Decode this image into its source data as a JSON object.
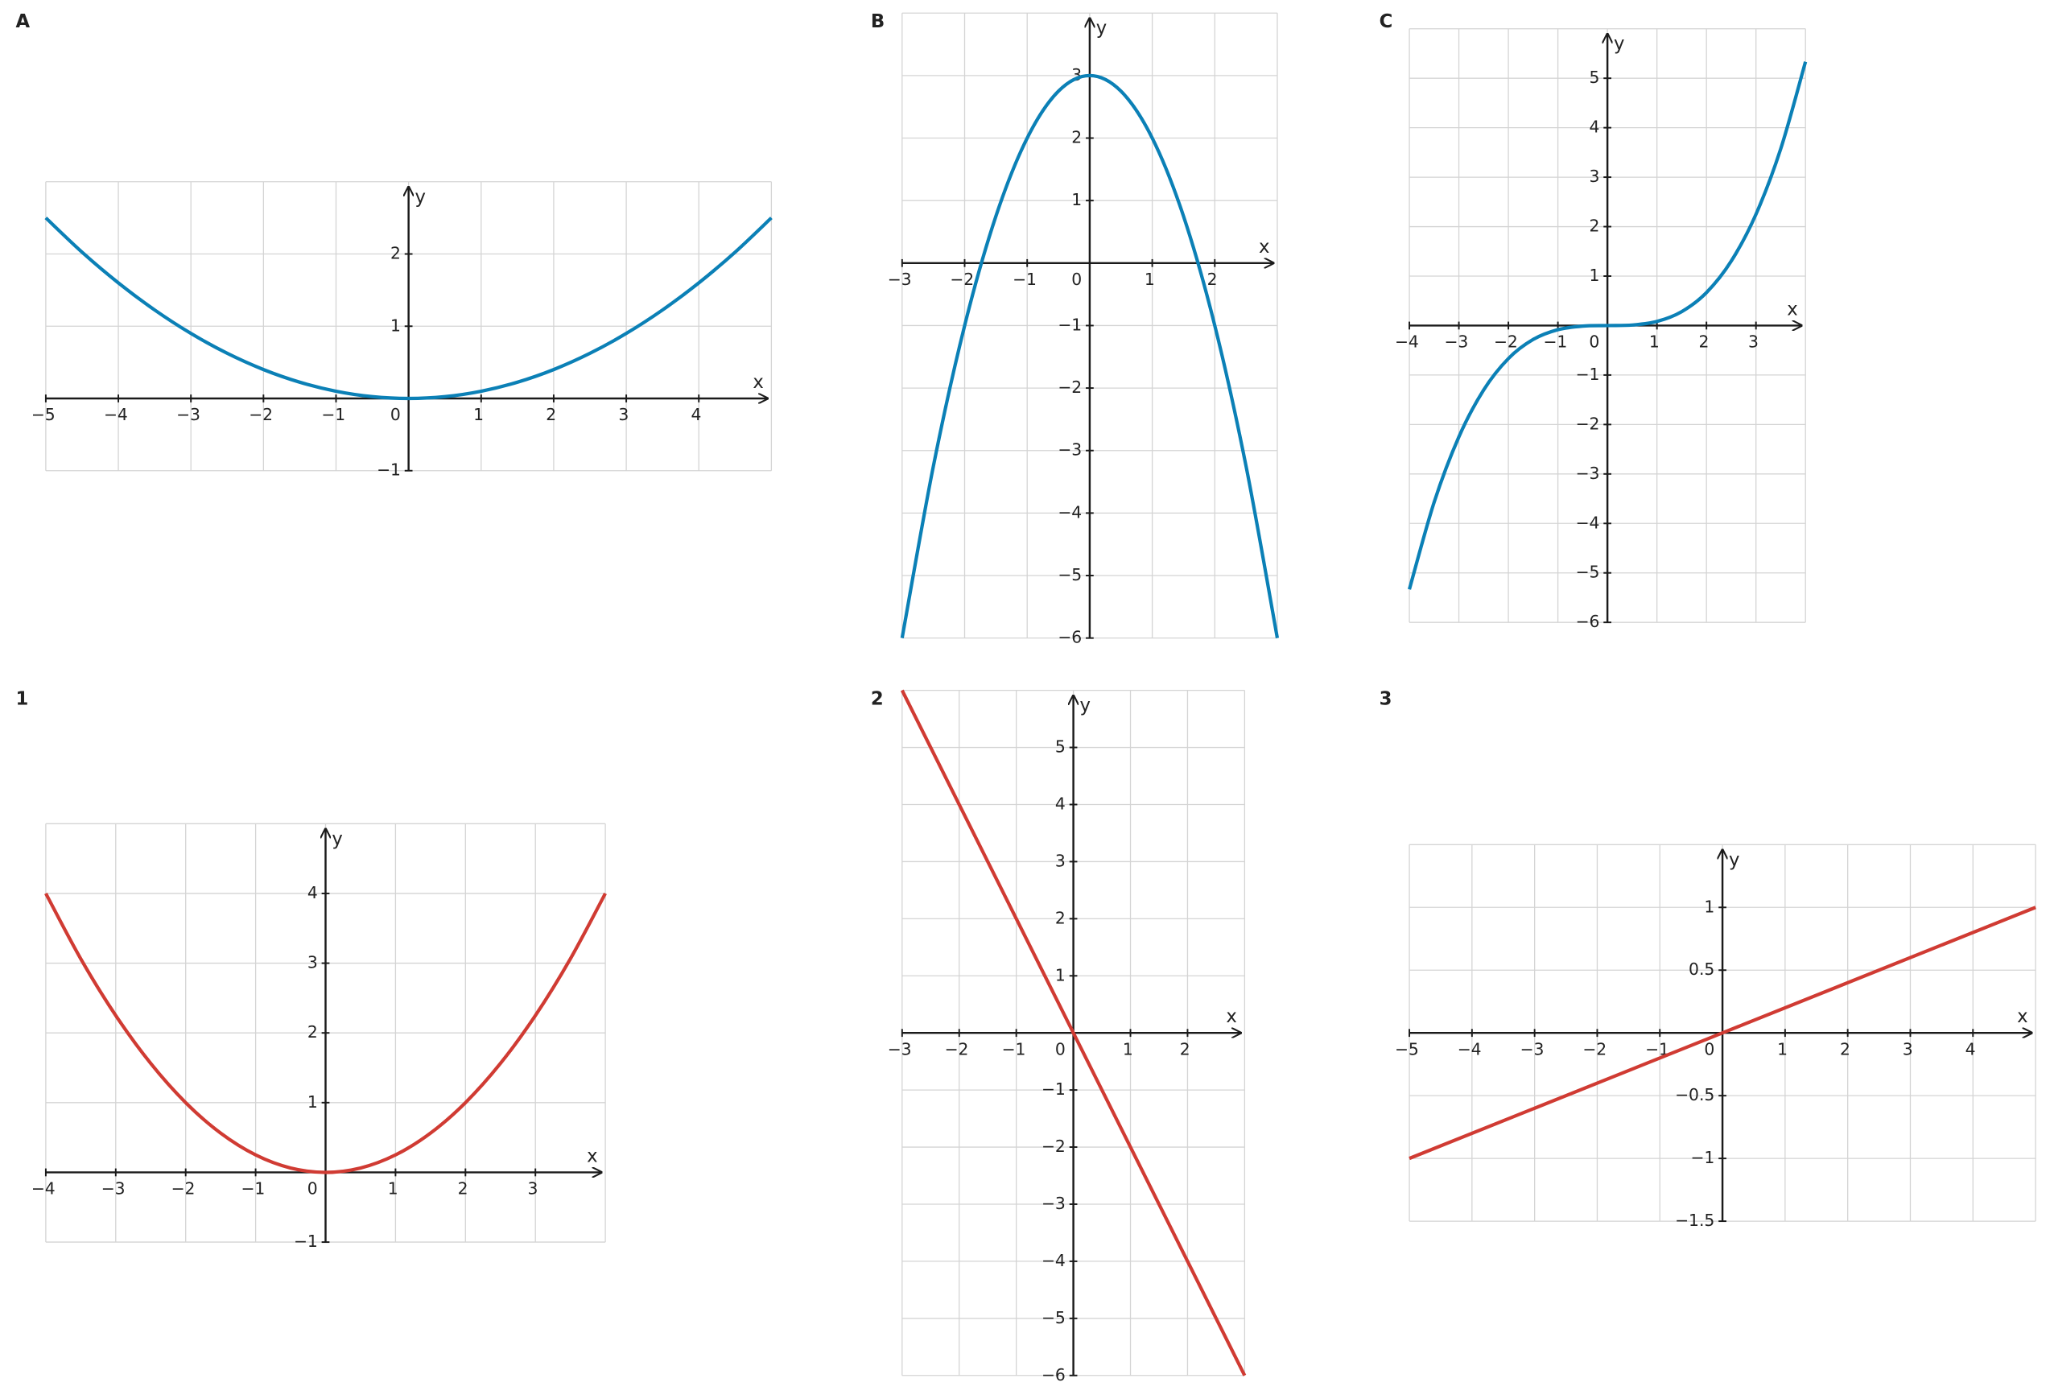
{
  "chart_data": [
    {
      "type": "line",
      "title": "A",
      "x_label": "x",
      "y_label": "y",
      "x": [
        -5,
        -4.5,
        -4,
        -3.5,
        -3,
        -2.5,
        -2,
        -1.5,
        -1,
        -0.5,
        0,
        0.5,
        1,
        1.5,
        2,
        2.5,
        3,
        3.5,
        4,
        4.5,
        5
      ],
      "series": [
        {
          "color": "#0b80b6",
          "values": [
            2.5,
            2.025,
            1.6,
            1.225,
            0.9,
            0.625,
            0.4,
            0.225,
            0.1,
            0.025,
            0,
            0.025,
            0.1,
            0.225,
            0.4,
            0.625,
            0.9,
            1.225,
            1.6,
            2.025,
            2.5
          ]
        }
      ],
      "xlim": [
        -5,
        5
      ],
      "ylim": [
        -1,
        3
      ],
      "xticks": [
        {
          "value": -5,
          "label": "−5"
        },
        {
          "value": -4,
          "label": "−4"
        },
        {
          "value": -3,
          "label": "−3"
        },
        {
          "value": -2,
          "label": "−2"
        },
        {
          "value": -1,
          "label": "−1"
        },
        0,
        1,
        2,
        3,
        4
      ],
      "yticks": [
        {
          "value": -1,
          "label": "−1"
        },
        1,
        2
      ],
      "grid": true
    },
    {
      "type": "line",
      "title": "B",
      "x_label": "x",
      "y_label": "y",
      "x": [
        -3,
        -2.5,
        -2,
        -1.5,
        -1,
        -0.5,
        0,
        0.5,
        1,
        1.5,
        2,
        2.5,
        3
      ],
      "series": [
        {
          "color": "#0b80b6",
          "values": [
            -6,
            -3.25,
            -1,
            0.75,
            2,
            2.75,
            3,
            2.75,
            2,
            0.75,
            -1,
            -3.25,
            -6
          ]
        }
      ],
      "xlim": [
        -3,
        3
      ],
      "ylim": [
        -6,
        4
      ],
      "xticks": [
        {
          "value": -3,
          "label": "−3"
        },
        {
          "value": -2,
          "label": "−2"
        },
        {
          "value": -1,
          "label": "−1"
        },
        0,
        1,
        2
      ],
      "yticks": [
        {
          "value": -6,
          "label": "−6"
        },
        {
          "value": -5,
          "label": "−5"
        },
        {
          "value": -4,
          "label": "−4"
        },
        {
          "value": -3,
          "label": "−3"
        },
        {
          "value": -2,
          "label": "−2"
        },
        {
          "value": -1,
          "label": "−1"
        },
        1,
        2,
        3
      ],
      "grid": true
    },
    {
      "type": "line",
      "title": "C",
      "x_label": "x",
      "y_label": "y",
      "x": [
        -4,
        -3.5,
        -3,
        -2.5,
        -2,
        -1.5,
        -1,
        -0.5,
        0,
        0.5,
        1,
        1.5,
        2,
        2.5,
        3,
        3.5,
        4
      ],
      "series": [
        {
          "color": "#0b80b6",
          "values": [
            -5.3333,
            -3.5729,
            -2.25,
            -1.3021,
            -0.6667,
            -0.2813,
            -0.0833,
            -0.0104,
            0,
            0.0104,
            0.0833,
            0.2813,
            0.6667,
            1.3021,
            2.25,
            3.5729,
            5.3333
          ]
        }
      ],
      "xlim": [
        -4,
        4
      ],
      "ylim": [
        -6,
        6
      ],
      "xticks": [
        {
          "value": -4,
          "label": "−4"
        },
        {
          "value": -3,
          "label": "−3"
        },
        {
          "value": -2,
          "label": "−2"
        },
        {
          "value": -1,
          "label": "−1"
        },
        0,
        1,
        2,
        3
      ],
      "yticks": [
        {
          "value": -6,
          "label": "−6"
        },
        {
          "value": -5,
          "label": "−5"
        },
        {
          "value": -4,
          "label": "−4"
        },
        {
          "value": -3,
          "label": "−3"
        },
        {
          "value": -2,
          "label": "−2"
        },
        {
          "value": -1,
          "label": "−1"
        },
        1,
        2,
        3,
        4,
        5
      ],
      "grid": true
    },
    {
      "type": "line",
      "title": "1",
      "x_label": "x",
      "y_label": "y",
      "x": [
        -4,
        -3.5,
        -3,
        -2.5,
        -2,
        -1.5,
        -1,
        -0.5,
        0,
        0.5,
        1,
        1.5,
        2,
        2.5,
        3,
        3.5,
        4
      ],
      "series": [
        {
          "color": "#d03b33",
          "values": [
            4,
            3.0625,
            2.25,
            1.5625,
            1,
            0.5625,
            0.25,
            0.0625,
            0,
            0.0625,
            0.25,
            0.5625,
            1,
            1.5625,
            2.25,
            3.0625,
            4
          ]
        }
      ],
      "xlim": [
        -4,
        4
      ],
      "ylim": [
        -1,
        5
      ],
      "xticks": [
        {
          "value": -4,
          "label": "−4"
        },
        {
          "value": -3,
          "label": "−3"
        },
        {
          "value": -2,
          "label": "−2"
        },
        {
          "value": -1,
          "label": "−1"
        },
        0,
        1,
        2,
        3
      ],
      "yticks": [
        {
          "value": -1,
          "label": "−1"
        },
        1,
        2,
        3,
        4
      ],
      "grid": true
    },
    {
      "type": "line",
      "title": "2",
      "x_label": "x",
      "y_label": "y",
      "x": [
        -3,
        3
      ],
      "series": [
        {
          "color": "#d03b33",
          "values": [
            6,
            -6
          ]
        }
      ],
      "xlim": [
        -3,
        3
      ],
      "ylim": [
        -6,
        6
      ],
      "xticks": [
        {
          "value": -3,
          "label": "−3"
        },
        {
          "value": -2,
          "label": "−2"
        },
        {
          "value": -1,
          "label": "−1"
        },
        0,
        1,
        2
      ],
      "yticks": [
        {
          "value": -6,
          "label": "−6"
        },
        {
          "value": -5,
          "label": "−5"
        },
        {
          "value": -4,
          "label": "−4"
        },
        {
          "value": -3,
          "label": "−3"
        },
        {
          "value": -2,
          "label": "−2"
        },
        {
          "value": -1,
          "label": "−1"
        },
        1,
        2,
        3,
        4,
        5
      ],
      "grid": true
    },
    {
      "type": "line",
      "title": "3",
      "x_label": "x",
      "y_label": "y",
      "x": [
        -5,
        5
      ],
      "series": [
        {
          "color": "#d03b33",
          "values": [
            -1,
            1
          ]
        }
      ],
      "xlim": [
        -5,
        5
      ],
      "ylim": [
        -1.5,
        1.5
      ],
      "xticks": [
        {
          "value": -5,
          "label": "−5"
        },
        {
          "value": -4,
          "label": "−4"
        },
        {
          "value": -3,
          "label": "−3"
        },
        {
          "value": -2,
          "label": "−2"
        },
        {
          "value": -1,
          "label": "−1"
        },
        0,
        1,
        2,
        3,
        4
      ],
      "yticks": [
        {
          "value": -1.5,
          "label": "−1.5"
        },
        {
          "value": -1,
          "label": "−1"
        },
        {
          "value": -0.5,
          "label": "−0.5"
        },
        0.5,
        1
      ],
      "grid": true
    }
  ]
}
